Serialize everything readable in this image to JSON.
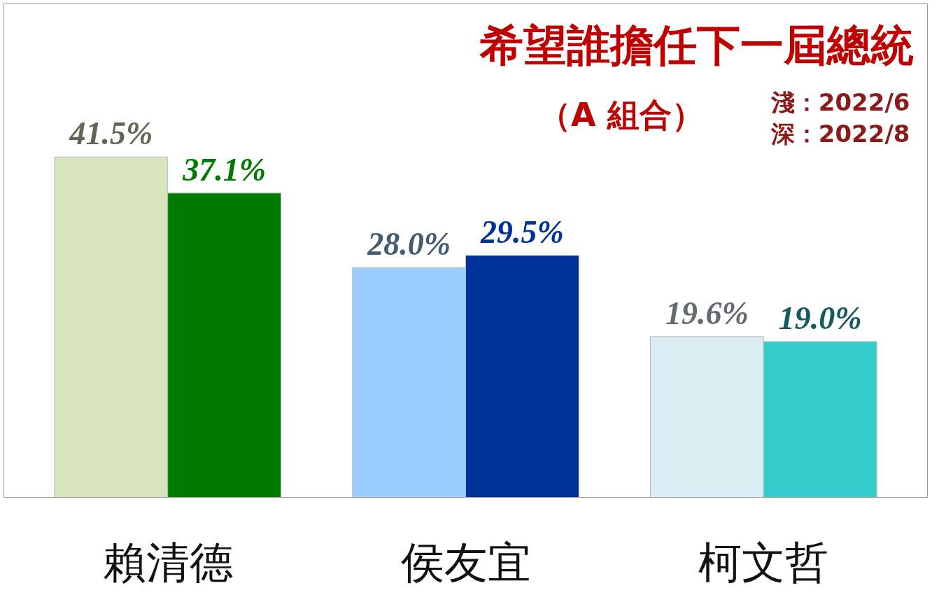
{
  "chart_data": {
    "type": "bar",
    "title": "希望誰擔任下一屆總統",
    "subtitle": "（A 組合）",
    "annotations": [
      "淺：2022/6",
      "深：2022/8"
    ],
    "categories": [
      "賴清德",
      "侯友宜",
      "柯文哲"
    ],
    "series": [
      {
        "values": [
          41.5,
          28.0,
          19.6
        ],
        "value_labels": [
          "41.5%",
          "28.0%",
          "19.6%"
        ],
        "colors": [
          "#d8e4bc",
          "#99ccff",
          "#daeef3"
        ]
      },
      {
        "values": [
          37.1,
          29.5,
          19.0
        ],
        "value_labels": [
          "37.1%",
          "29.5%",
          "19.0%"
        ],
        "colors": [
          "#007a00",
          "#003399",
          "#33cccc"
        ]
      }
    ],
    "grid": false
  }
}
